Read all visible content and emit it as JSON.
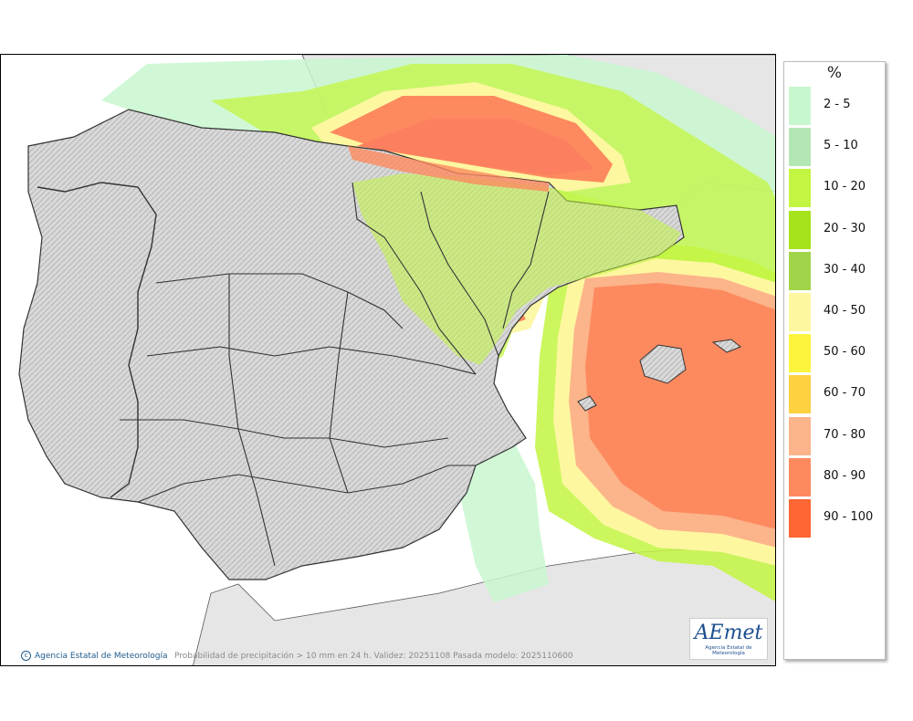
{
  "legend": {
    "unit": "%",
    "classes": [
      {
        "label": "2 - 5",
        "color": "#c8f7cf"
      },
      {
        "label": "5 - 10",
        "color": "#b4e6b4"
      },
      {
        "label": "10 - 20",
        "color": "#c3f542"
      },
      {
        "label": "20 - 30",
        "color": "#a6e31a"
      },
      {
        "label": "30 - 40",
        "color": "#a2d44a"
      },
      {
        "label": "40 - 50",
        "color": "#fdf7a0"
      },
      {
        "label": "50 - 60",
        "color": "#fcf43c"
      },
      {
        "label": "60 - 70",
        "color": "#fdd13f"
      },
      {
        "label": "70 - 80",
        "color": "#fcb48a"
      },
      {
        "label": "80 - 90",
        "color": "#fd8a5f"
      },
      {
        "label": "90 - 100",
        "color": "#ff6633"
      }
    ]
  },
  "footer": {
    "credit": "Agencia Estatal de Meteorología",
    "caption": "Probabilidad de precipitación > 10 mm en 24 h. Validez: 20251108 Pasada modelo: 2025110600"
  },
  "logo": {
    "text_main": "AEmet",
    "text_sub": "Agencia Estatal de Meteorología"
  }
}
